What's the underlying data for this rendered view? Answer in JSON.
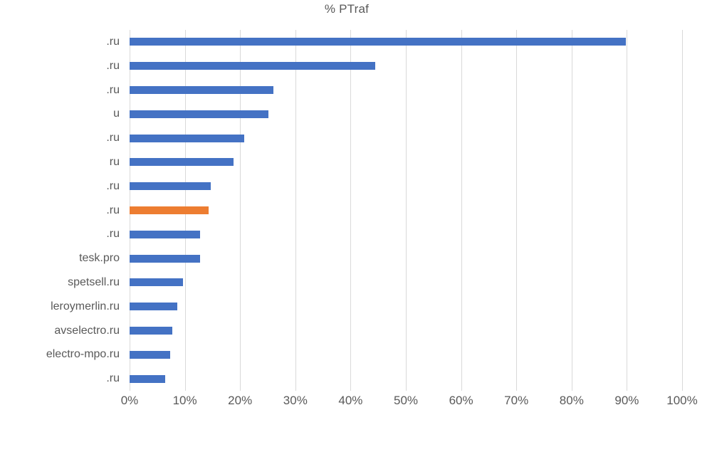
{
  "chart_data": {
    "type": "bar",
    "orientation": "horizontal",
    "title": "% PTraf",
    "categories": [
      ".ru",
      ".ru",
      ".ru",
      "u",
      ".ru",
      "ru",
      ".ru",
      ".ru",
      ".ru",
      "tesk.pro",
      "spetsell.ru",
      "leroymerlin.ru",
      "avselectro.ru",
      "electro-mpo.ru",
      ".ru"
    ],
    "values": [
      89.8,
      44.4,
      26.0,
      25.1,
      20.7,
      18.8,
      14.7,
      14.3,
      12.7,
      12.7,
      9.7,
      8.6,
      7.7,
      7.4,
      6.4
    ],
    "highlight_index": 7,
    "x_ticks": [
      "0%",
      "10%",
      "20%",
      "30%",
      "40%",
      "50%",
      "60%",
      "70%",
      "80%",
      "90%",
      "100%"
    ],
    "xlim": [
      0,
      100
    ],
    "grid": "vertical",
    "legend": "none",
    "colors": {
      "bar": "#4472C4",
      "highlight": "#ED7D31",
      "gridline": "#D9D9D9",
      "text": "#595959"
    }
  }
}
